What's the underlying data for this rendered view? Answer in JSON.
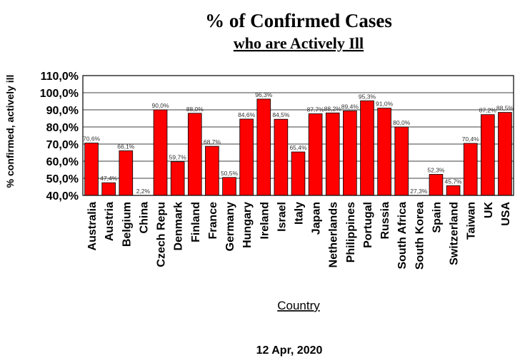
{
  "chart_data": {
    "type": "bar",
    "title": "% of Confirmed Cases",
    "subtitle": "who are Actively Ill",
    "xlabel": "Country",
    "ylabel": "% confirmed, actively ill",
    "footer": "12 Apr, 2020",
    "ylim": [
      40,
      110
    ],
    "yticks": [
      40,
      50,
      60,
      70,
      80,
      90,
      100,
      110
    ],
    "ytick_labels": [
      "40,0%",
      "50,0%",
      "60,0%",
      "70,0%",
      "80,0%",
      "90,0%",
      "100,0%",
      "110,0%"
    ],
    "grid": true,
    "bar_color": "#ff0000",
    "categories": [
      "Australia",
      "Austria",
      "Belgium",
      "China",
      "Czech Repu",
      "Denmark",
      "Finland",
      "France",
      "Germany",
      "Hungary",
      "Ireland",
      "Israel",
      "Italy",
      "Japan",
      "Netherlands",
      "Philippines",
      "Portugal",
      "Russia",
      "South Africa",
      "South Korea",
      "Spain",
      "Switzerland",
      "Taiwan",
      "UK",
      "USA"
    ],
    "values": [
      70.6,
      47.4,
      66.1,
      2.2,
      90.0,
      59.7,
      88.0,
      68.7,
      50.5,
      84.6,
      96.3,
      84.5,
      65.4,
      87.7,
      88.2,
      89.4,
      95.3,
      91.0,
      80.0,
      27.3,
      52.3,
      45.7,
      70.4,
      87.2,
      88.5
    ],
    "data_labels": [
      "70,6%",
      "47,4%",
      "66,1%",
      "2,2%",
      "90,0%",
      "59,7%",
      "88,0%",
      "68,7%",
      "50,5%",
      "84,6%",
      "96,3%",
      "84,5%",
      "65,4%",
      "87,7%",
      "88,2%",
      "89,4%",
      "95,3%",
      "91,0%",
      "80,0%",
      "27,3%",
      "52,3%",
      "45,7%",
      "70,4%",
      "87,2%",
      "88,5%"
    ]
  }
}
